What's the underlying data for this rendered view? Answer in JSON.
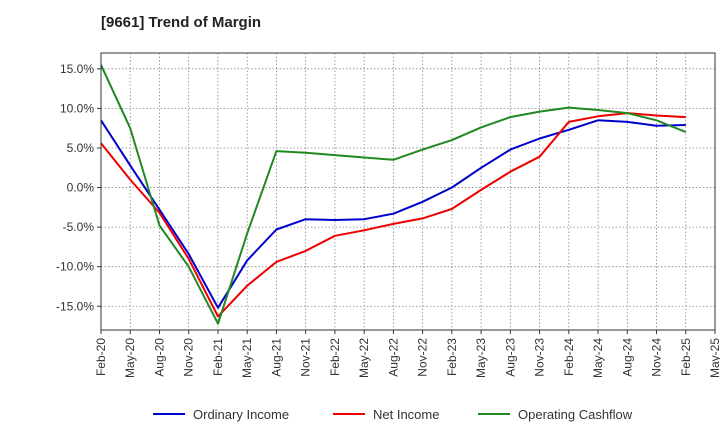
{
  "title": "[9661]  Trend of Margin",
  "chart_data": {
    "type": "line",
    "title": "[9661]  Trend of Margin",
    "xlabel": "",
    "ylabel": "",
    "x": [
      "Feb-20",
      "May-20",
      "Aug-20",
      "Nov-20",
      "Feb-21",
      "May-21",
      "Aug-21",
      "Nov-21",
      "Feb-22",
      "May-22",
      "Aug-22",
      "Nov-22",
      "Feb-23",
      "May-23",
      "Aug-23",
      "Nov-23",
      "Feb-24",
      "May-24",
      "Aug-24",
      "Nov-24",
      "Feb-25",
      "May-25"
    ],
    "y_ticks": [
      "15.0%",
      "10.0%",
      "5.0%",
      "0.0%",
      "-5.0%",
      "-10.0%",
      "-15.0%"
    ],
    "ylim": [
      -18,
      17
    ],
    "grid": true,
    "legend_position": "bottom",
    "series": [
      {
        "name": "Ordinary Income",
        "color": "#0000cc",
        "values": [
          8.5,
          2.8,
          -2.8,
          -8.4,
          -15.2,
          -9.2,
          -5.3,
          -4.0,
          -4.1,
          -4.0,
          -3.3,
          -1.8,
          0.0,
          2.5,
          4.8,
          6.2,
          7.3,
          8.5,
          8.3,
          7.8,
          7.9,
          null
        ]
      },
      {
        "name": "Net Income",
        "color": "#ee0000",
        "values": [
          5.6,
          1.0,
          -3.2,
          -9.0,
          -16.3,
          -12.4,
          -9.4,
          -8.0,
          -6.1,
          -5.4,
          -4.6,
          -3.9,
          -2.7,
          -0.3,
          2.0,
          3.9,
          8.3,
          9.0,
          9.4,
          9.1,
          8.9,
          null
        ]
      },
      {
        "name": "Operating Cashflow",
        "color": "#228822",
        "values": [
          15.5,
          7.5,
          -4.8,
          -10.0,
          -17.2,
          -5.8,
          4.6,
          4.4,
          4.1,
          3.8,
          3.5,
          4.8,
          6.0,
          7.6,
          8.9,
          9.6,
          10.1,
          9.8,
          9.4,
          8.5,
          7.0,
          null
        ]
      }
    ]
  },
  "legend": {
    "items": [
      {
        "label": "Ordinary Income",
        "color": "#0000cc"
      },
      {
        "label": "Net Income",
        "color": "#ee0000"
      },
      {
        "label": "Operating Cashflow",
        "color": "#228822"
      }
    ]
  }
}
